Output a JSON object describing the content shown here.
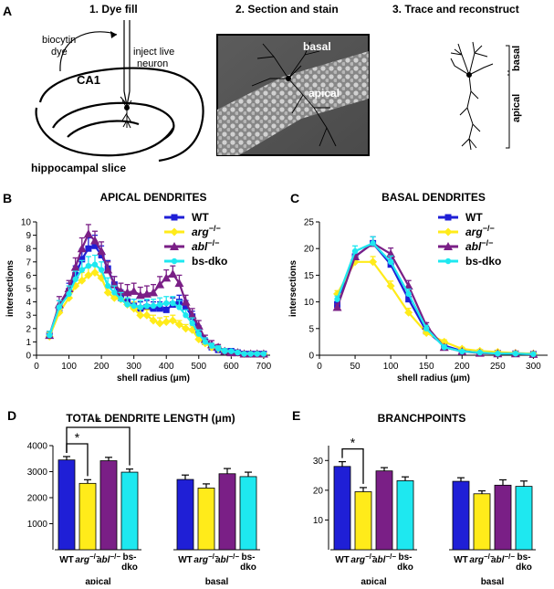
{
  "panel_a": {
    "label": "A",
    "step1": "1. Dye fill",
    "step2": "2. Section and stain",
    "step3": "3. Trace and reconstruct",
    "biocytin": "biocytin",
    "dye": "dye",
    "inject1": "inject live",
    "inject2": "neuron",
    "ca1": "CA1",
    "slice": "hippocampal slice",
    "basal": "basal",
    "apical": "apical",
    "trace_basal": "basal",
    "trace_apical": "apical"
  },
  "panel_labels": {
    "b": "B",
    "c": "C",
    "d": "D",
    "e": "E"
  },
  "genotypes": [
    {
      "name": "WT",
      "sup": "",
      "italic": false,
      "color": "#1f1fd6",
      "marker": "square"
    },
    {
      "name": "arg",
      "sup": "−/−",
      "italic": true,
      "color": "#ffeb1a",
      "marker": "diamond"
    },
    {
      "name": "abl",
      "sup": "−/−",
      "italic": true,
      "color": "#7a1f86",
      "marker": "triangle"
    },
    {
      "name": "bs-dko",
      "sup": "",
      "italic": false,
      "color": "#1ee8f0",
      "marker": "circle"
    }
  ],
  "chart_data": [
    {
      "id": "B",
      "type": "line",
      "title": "APICAL DENDRITES",
      "xlabel": "shell radius (μm)",
      "ylabel": "intersections",
      "xlim": [
        0,
        720
      ],
      "ylim": [
        0,
        10
      ],
      "xticks": [
        0,
        100,
        200,
        300,
        400,
        500,
        600,
        700
      ],
      "yticks": [
        0,
        1,
        2,
        3,
        4,
        5,
        6,
        7,
        8,
        9,
        10
      ],
      "x": [
        40,
        70,
        100,
        120,
        140,
        160,
        180,
        200,
        220,
        240,
        260,
        280,
        300,
        320,
        340,
        360,
        380,
        400,
        420,
        440,
        460,
        480,
        500,
        520,
        540,
        560,
        580,
        600,
        620,
        640,
        660,
        680,
        700
      ],
      "series": [
        {
          "name": "WT",
          "values": [
            1.5,
            3.5,
            4.8,
            6.0,
            7.2,
            8.0,
            8.2,
            7.5,
            6.5,
            5.3,
            4.3,
            4.0,
            3.7,
            3.5,
            3.6,
            3.5,
            3.5,
            3.4,
            3.8,
            4.0,
            3.6,
            2.9,
            1.8,
            1.0,
            0.6,
            0.4,
            0.3,
            0.3,
            0.2,
            0.1,
            0.1,
            0.1,
            0.1
          ],
          "err": [
            0.3,
            0.6,
            0.6,
            0.7,
            0.8,
            0.8,
            0.8,
            0.7,
            0.6,
            0.6,
            0.6,
            0.5,
            0.5,
            0.5,
            0.5,
            0.5,
            0.5,
            0.5,
            0.5,
            0.5,
            0.5,
            0.4,
            0.4,
            0.3,
            0.2,
            0.2,
            0.2,
            0.2,
            0.1,
            0.1,
            0.1,
            0.1,
            0.1
          ]
        },
        {
          "name": "arg−/−",
          "values": [
            1.4,
            3.2,
            4.3,
            5.2,
            5.6,
            6.0,
            6.2,
            5.8,
            4.7,
            4.3,
            4.2,
            3.8,
            3.5,
            3.0,
            3.0,
            2.6,
            2.4,
            2.5,
            2.6,
            2.3,
            2.0,
            1.9,
            1.2,
            0.9,
            0.6,
            0.5,
            0.3,
            0.2,
            0.2,
            0.1,
            0.1,
            0.1,
            0.1
          ],
          "err": [
            0.3,
            0.5,
            0.5,
            0.6,
            0.6,
            0.6,
            0.6,
            0.6,
            0.5,
            0.5,
            0.5,
            0.5,
            0.5,
            0.5,
            0.4,
            0.4,
            0.4,
            0.4,
            0.4,
            0.3,
            0.3,
            0.3,
            0.3,
            0.2,
            0.2,
            0.2,
            0.2,
            0.1,
            0.1,
            0.1,
            0.1,
            0.1,
            0.1
          ]
        },
        {
          "name": "abl−/−",
          "values": [
            1.5,
            3.8,
            5.0,
            6.6,
            8.0,
            9.1,
            8.6,
            7.8,
            6.4,
            5.3,
            4.8,
            4.7,
            4.8,
            4.5,
            4.6,
            4.7,
            5.3,
            5.8,
            6.1,
            5.4,
            4.0,
            3.0,
            2.2,
            1.2,
            0.8,
            0.6,
            0.3,
            0.2,
            0.2,
            0.1,
            0.1,
            0.1,
            0.1
          ],
          "err": [
            0.3,
            0.6,
            0.6,
            0.7,
            0.8,
            0.7,
            0.7,
            0.7,
            0.6,
            0.6,
            0.6,
            0.6,
            0.6,
            0.6,
            0.6,
            0.6,
            0.6,
            0.6,
            0.6,
            0.6,
            0.5,
            0.5,
            0.4,
            0.3,
            0.3,
            0.2,
            0.2,
            0.1,
            0.1,
            0.1,
            0.1,
            0.1,
            0.1
          ]
        },
        {
          "name": "bs-dko",
          "values": [
            1.5,
            3.6,
            4.6,
            5.7,
            6.4,
            6.7,
            6.8,
            6.4,
            5.2,
            4.7,
            4.2,
            3.8,
            3.7,
            3.6,
            3.7,
            3.7,
            3.8,
            3.9,
            3.9,
            3.6,
            3.0,
            2.4,
            1.6,
            1.0,
            0.7,
            0.5,
            0.3,
            0.3,
            0.2,
            0.1,
            0.1,
            0.1,
            0.1
          ],
          "err": [
            0.3,
            0.5,
            0.6,
            0.6,
            0.7,
            0.7,
            0.7,
            0.6,
            0.6,
            0.5,
            0.5,
            0.5,
            0.5,
            0.5,
            0.5,
            0.5,
            0.5,
            0.5,
            0.5,
            0.5,
            0.4,
            0.4,
            0.3,
            0.3,
            0.2,
            0.2,
            0.2,
            0.1,
            0.1,
            0.1,
            0.1,
            0.1,
            0.1
          ]
        }
      ]
    },
    {
      "id": "C",
      "type": "line",
      "title": "BASAL DENDRITES",
      "xlabel": "shell radius (μm)",
      "ylabel": "intersections",
      "xlim": [
        0,
        320
      ],
      "ylim": [
        0,
        25
      ],
      "xticks": [
        0,
        50,
        100,
        150,
        200,
        250,
        300
      ],
      "yticks": [
        0,
        5,
        10,
        15,
        20,
        25
      ],
      "x": [
        25,
        50,
        75,
        100,
        125,
        150,
        175,
        200,
        225,
        250,
        275,
        300
      ],
      "series": [
        {
          "name": "WT",
          "values": [
            9.5,
            18.5,
            21.0,
            17.0,
            10.5,
            4.5,
            1.8,
            0.8,
            0.5,
            0.4,
            0.3,
            0.2
          ],
          "err": [
            0.6,
            1.0,
            1.2,
            1.1,
            0.9,
            0.6,
            0.4,
            0.3,
            0.2,
            0.2,
            0.2,
            0.2
          ]
        },
        {
          "name": "arg−/−",
          "values": [
            11.5,
            17.5,
            17.5,
            13.0,
            8.0,
            4.2,
            2.5,
            1.2,
            0.8,
            0.6,
            0.4,
            0.3
          ],
          "err": [
            0.6,
            1.0,
            1.0,
            0.9,
            0.8,
            0.5,
            0.4,
            0.3,
            0.3,
            0.2,
            0.2,
            0.2
          ]
        },
        {
          "name": "abl−/−",
          "values": [
            9.0,
            18.5,
            21.0,
            19.0,
            13.0,
            5.5,
            1.5,
            0.7,
            0.4,
            0.3,
            0.3,
            0.2
          ],
          "err": [
            0.6,
            1.0,
            1.2,
            1.1,
            1.0,
            0.6,
            0.4,
            0.3,
            0.2,
            0.2,
            0.2,
            0.2
          ]
        },
        {
          "name": "bs-dko",
          "values": [
            10.5,
            19.5,
            21.0,
            17.5,
            11.5,
            5.0,
            1.5,
            0.7,
            0.5,
            0.3,
            0.3,
            0.2
          ],
          "err": [
            0.6,
            1.0,
            1.2,
            1.1,
            0.9,
            0.6,
            0.4,
            0.3,
            0.2,
            0.2,
            0.2,
            0.2
          ]
        }
      ]
    },
    {
      "id": "D",
      "type": "bar",
      "title": "TOTAL DENDRITE LENGTH (μm)",
      "ylim": [
        0,
        4000
      ],
      "yticks": [
        1000,
        2000,
        3000,
        4000
      ],
      "groups": [
        "apical",
        "basal"
      ],
      "categories": [
        "WT",
        "arg−/−",
        "abl−/−",
        "bs-dko"
      ],
      "series": [
        {
          "group": "apical",
          "values": [
            3450,
            2550,
            3420,
            2980
          ],
          "err": [
            130,
            140,
            130,
            120
          ]
        },
        {
          "group": "basal",
          "values": [
            2700,
            2370,
            2920,
            2810
          ],
          "err": [
            170,
            160,
            200,
            170
          ]
        }
      ],
      "significance": [
        {
          "pair": [
            "WT",
            "arg−/−"
          ],
          "label": "*"
        },
        {
          "pair": [
            "WT",
            "bs-dko"
          ],
          "label": "*"
        }
      ]
    },
    {
      "id": "E",
      "type": "bar",
      "title": "BRANCHPOINTS",
      "ylim": [
        0,
        35
      ],
      "yticks": [
        10,
        20,
        30
      ],
      "groups": [
        "apical",
        "basal"
      ],
      "categories": [
        "WT",
        "arg−/−",
        "abl−/−",
        "bs-dko"
      ],
      "series": [
        {
          "group": "apical",
          "values": [
            28,
            19.5,
            26.5,
            23.2
          ],
          "err": [
            1.6,
            1.4,
            1.1,
            1.3
          ]
        },
        {
          "group": "basal",
          "values": [
            23,
            18.8,
            21.7,
            21.3
          ],
          "err": [
            1.2,
            1.0,
            1.8,
            1.8
          ]
        }
      ],
      "significance": [
        {
          "pair": [
            "WT",
            "arg−/−"
          ],
          "label": "*"
        }
      ]
    }
  ]
}
